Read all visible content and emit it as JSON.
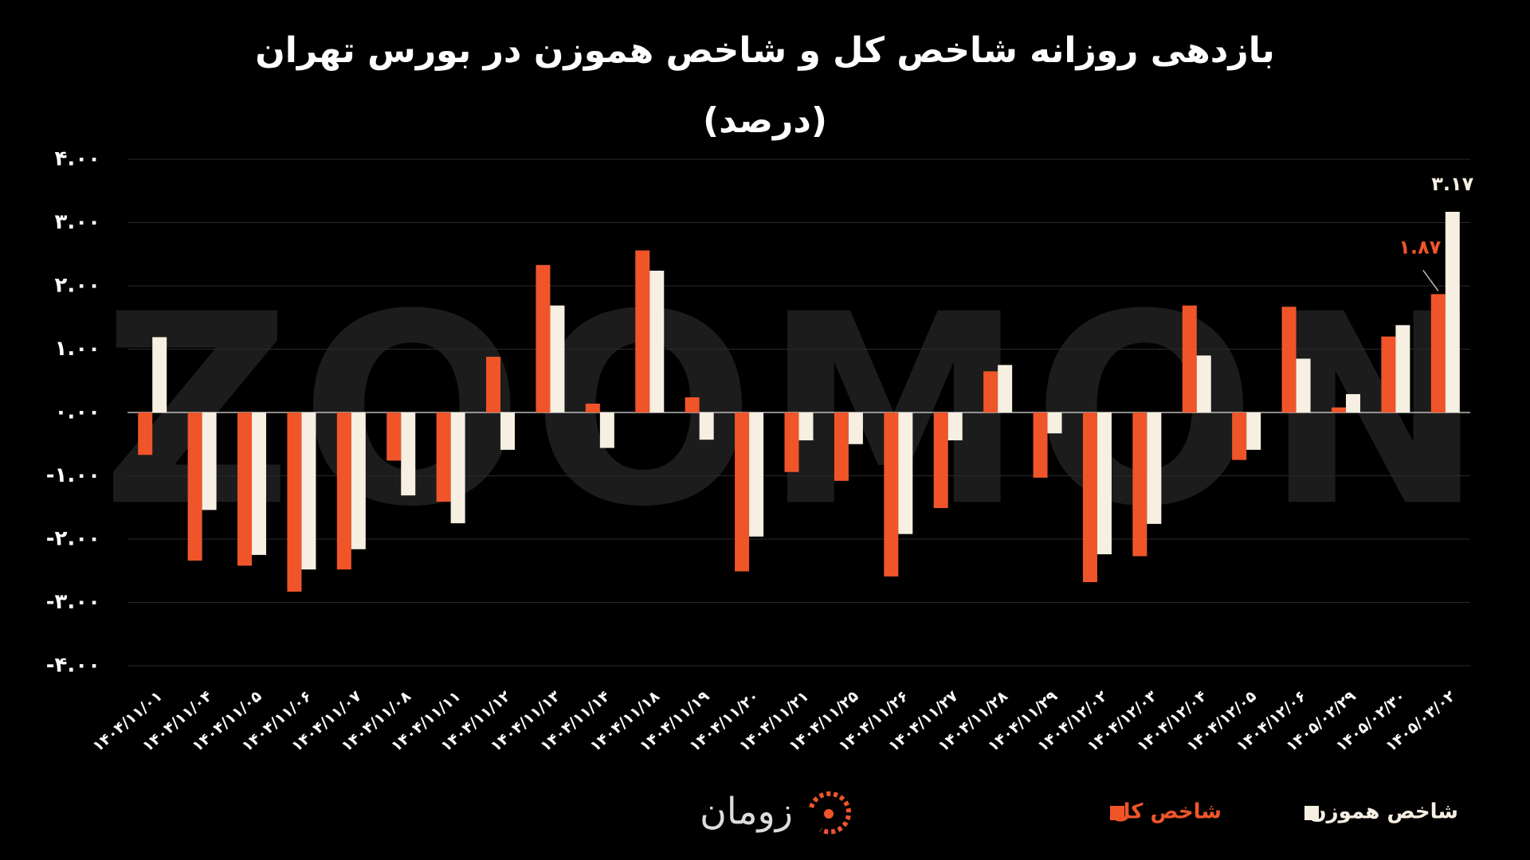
{
  "chart_data": {
    "type": "bar",
    "title": "بازدهی روزانه شاخص کل و شاخص هموزن در بورس تهران",
    "subtitle": "(درصد)",
    "categories": [
      "۱۴۰۴/۱۱/۰۱",
      "۱۴۰۴/۱۱/۰۴",
      "۱۴۰۴/۱۱/۰۵",
      "۱۴۰۴/۱۱/۰۶",
      "۱۴۰۴/۱۱/۰۷",
      "۱۴۰۴/۱۱/۰۸",
      "۱۴۰۴/۱۱/۱۱",
      "۱۴۰۴/۱۱/۱۲",
      "۱۴۰۴/۱۱/۱۳",
      "۱۴۰۴/۱۱/۱۴",
      "۱۴۰۴/۱۱/۱۸",
      "۱۴۰۴/۱۱/۱۹",
      "۱۴۰۴/۱۱/۲۰",
      "۱۴۰۴/۱۱/۲۱",
      "۱۴۰۴/۱۱/۲۵",
      "۱۴۰۴/۱۱/۲۶",
      "۱۴۰۴/۱۱/۲۷",
      "۱۴۰۴/۱۱/۲۸",
      "۱۴۰۴/۱۱/۲۹",
      "۱۴۰۴/۱۲/۰۲",
      "۱۴۰۴/۱۲/۰۳",
      "۱۴۰۴/۱۲/۰۴",
      "۱۴۰۴/۱۲/۰۵",
      "۱۴۰۴/۱۲/۰۶",
      "۱۴۰۵/۰۲/۲۹",
      "۱۴۰۵/۰۲/۳۰",
      "۱۴۰۵/۰۳/۰۲"
    ],
    "series": [
      {
        "name": "شاخص کل",
        "color": "#f0552a",
        "values": [
          -0.67,
          -2.34,
          -2.42,
          -2.83,
          -2.48,
          -0.76,
          -1.41,
          0.88,
          2.33,
          0.14,
          2.56,
          0.24,
          -2.51,
          -0.94,
          -1.08,
          -2.59,
          -1.51,
          0.65,
          -1.03,
          -2.68,
          -2.27,
          1.69,
          -0.75,
          1.67,
          0.08,
          1.2,
          1.87
        ],
        "value_labels": [
          null,
          null,
          null,
          null,
          null,
          null,
          null,
          null,
          null,
          null,
          null,
          null,
          null,
          null,
          null,
          null,
          null,
          null,
          null,
          null,
          null,
          null,
          null,
          null,
          null,
          null,
          "۱.۸۷"
        ]
      },
      {
        "name": "شاخص هموزن",
        "color": "#f6efe2",
        "values": [
          1.19,
          -1.54,
          -2.25,
          -2.48,
          -2.16,
          -1.31,
          -1.75,
          -0.59,
          1.69,
          -0.56,
          2.24,
          -0.43,
          -1.96,
          -0.44,
          -0.5,
          -1.92,
          -0.44,
          0.75,
          -0.33,
          -2.24,
          -1.76,
          0.9,
          -0.59,
          0.85,
          0.29,
          1.38,
          3.17
        ],
        "value_labels": [
          null,
          null,
          null,
          null,
          null,
          null,
          null,
          null,
          null,
          null,
          null,
          null,
          null,
          null,
          null,
          null,
          null,
          null,
          null,
          null,
          null,
          null,
          null,
          null,
          null,
          null,
          "۳.۱۷"
        ]
      }
    ],
    "ylim": [
      -4,
      4
    ],
    "yticks": [
      {
        "value": 4,
        "label": "۴.۰۰"
      },
      {
        "value": 3,
        "label": "۳.۰۰"
      },
      {
        "value": 2,
        "label": "۲.۰۰"
      },
      {
        "value": 1,
        "label": "۱.۰۰"
      },
      {
        "value": 0,
        "label": "۰.۰۰"
      },
      {
        "value": -1,
        "label": "-۱.۰۰"
      },
      {
        "value": -2,
        "label": "-۲.۰۰"
      },
      {
        "value": -3,
        "label": "-۳.۰۰"
      },
      {
        "value": -4,
        "label": "-۴.۰۰"
      }
    ],
    "grid": true
  },
  "brand": "زومان",
  "watermark": "ZOOMON"
}
